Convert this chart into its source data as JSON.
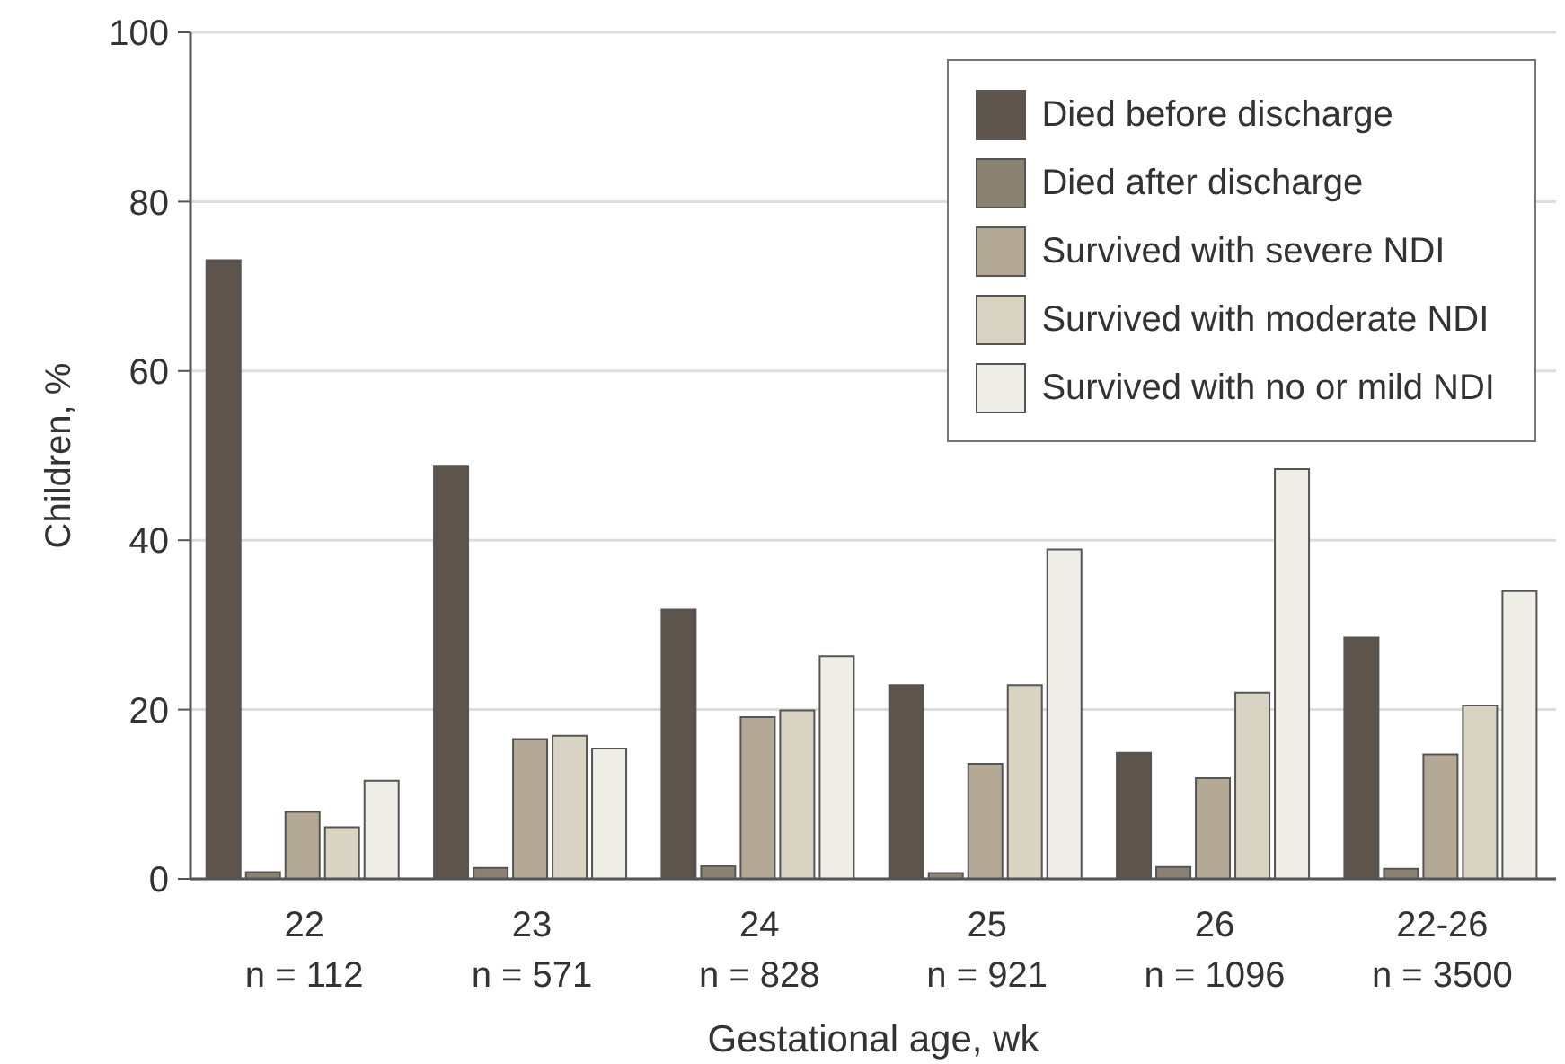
{
  "chart_data": {
    "type": "bar",
    "xlabel": "Gestational age, wk",
    "ylabel": "Children, %",
    "categories": [
      "22\nn = 112",
      "23\nn = 571",
      "24\nn = 828",
      "25\nn = 921",
      "26\nn = 1096",
      "22-26\nn = 3500"
    ],
    "series": [
      {
        "name": "Died before discharge",
        "color": "#5d554b",
        "values": [
          73.1,
          48.7,
          31.8,
          22.9,
          14.9,
          28.5
        ]
      },
      {
        "name": "Died after discharge",
        "color": "#8b8170",
        "values": [
          0.8,
          1.3,
          1.5,
          0.7,
          1.4,
          1.2
        ]
      },
      {
        "name": "Survived with severe NDI",
        "color": "#b4a995",
        "values": [
          7.9,
          16.5,
          19.1,
          13.6,
          11.9,
          14.7
        ]
      },
      {
        "name": "Survived with moderate NDI",
        "color": "#d9d3c3",
        "values": [
          6.1,
          16.9,
          19.9,
          22.9,
          22.0,
          20.5
        ]
      },
      {
        "name": "Survived with no or mild NDI",
        "color": "#efeee6",
        "values": [
          11.6,
          15.4,
          26.3,
          38.9,
          48.4,
          34.0
        ]
      }
    ],
    "ylim": [
      0,
      100
    ],
    "yticks": [
      0,
      20,
      40,
      60,
      80,
      100
    ],
    "grid": "y",
    "legend": "top right"
  }
}
